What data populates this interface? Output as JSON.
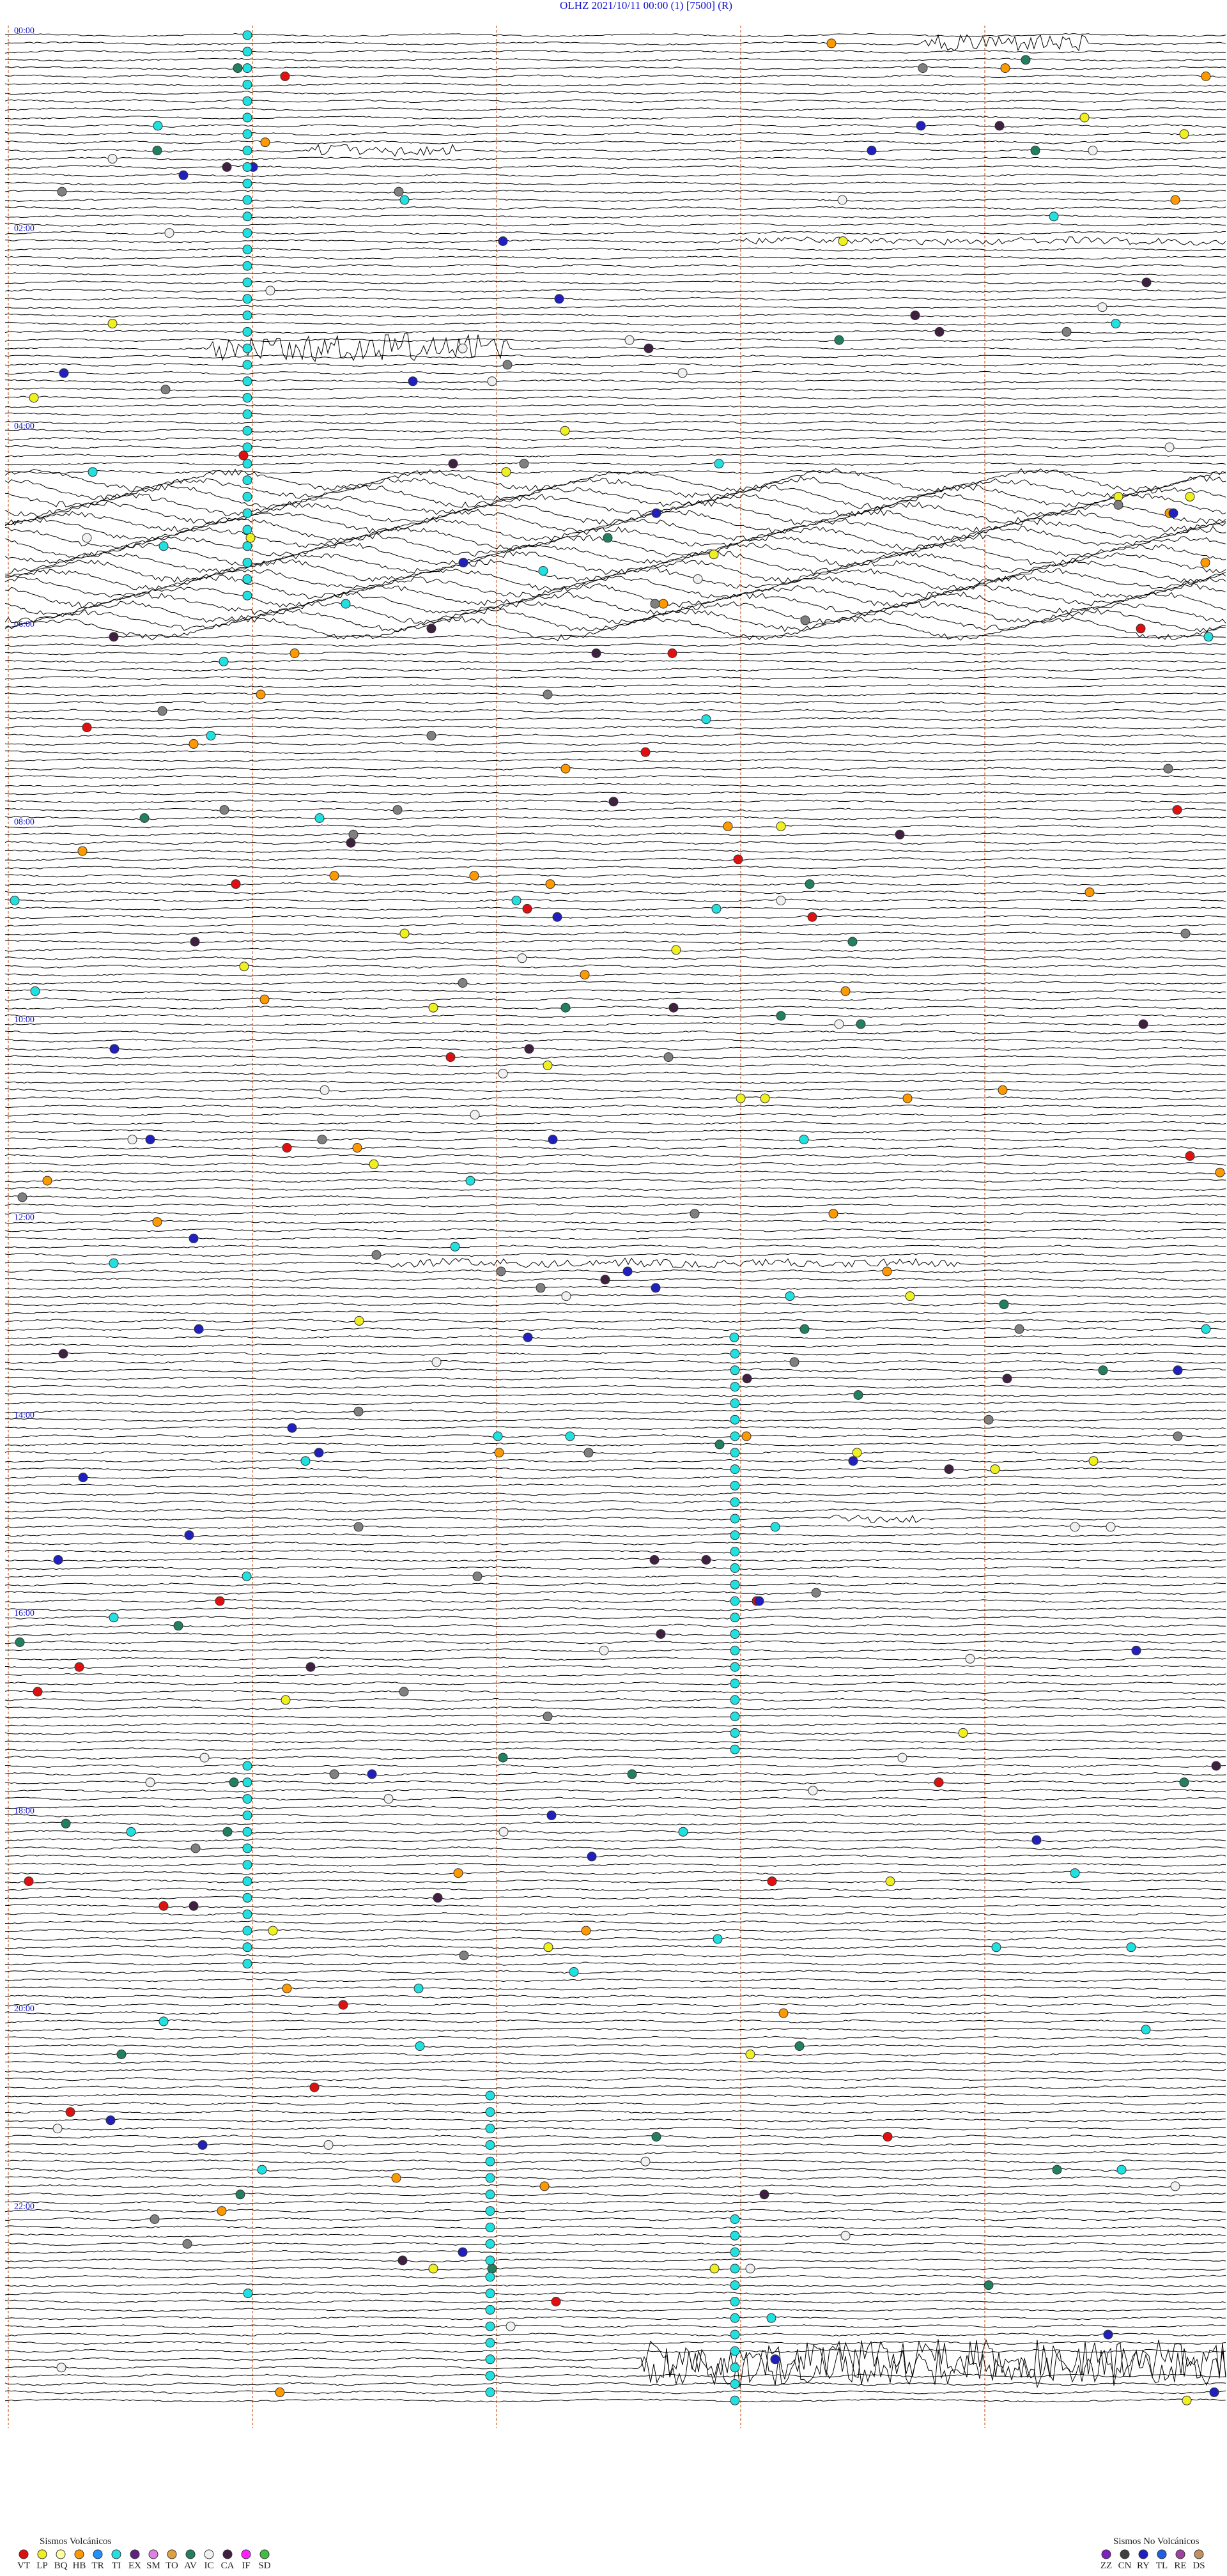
{
  "header": "OLHZ    2021/10/11 00:00    (1)    [7500]    (R)",
  "time_labels": [
    "00:00",
    "02:00",
    "04:00",
    "06:00",
    "08:00",
    "10:00",
    "12:00",
    "14:00",
    "16:00",
    "18:00",
    "20:00",
    "22:00"
  ],
  "legend_volcanic": {
    "title": "Sismos Volcánicos",
    "items": [
      {
        "code": "VT",
        "color": "#e01010"
      },
      {
        "code": "LP",
        "color": "#f0f020"
      },
      {
        "code": "BQ",
        "color": "#ffffa0"
      },
      {
        "code": "HB",
        "color": "#ff9900"
      },
      {
        "code": "TR",
        "color": "#2090ff"
      },
      {
        "code": "TI",
        "color": "#20e0e0"
      },
      {
        "code": "EX",
        "color": "#602080"
      },
      {
        "code": "SM",
        "color": "#e080e0"
      },
      {
        "code": "TO",
        "color": "#e0a040"
      },
      {
        "code": "AV",
        "color": "#208060"
      },
      {
        "code": "IC",
        "color": "#f0f0f0"
      },
      {
        "code": "CA",
        "color": "#402040"
      },
      {
        "code": "IF",
        "color": "#ff20ff"
      },
      {
        "code": "SD",
        "color": "#40c040"
      }
    ]
  },
  "legend_non_volcanic": {
    "title": "Sismos No Volcánicos",
    "items": [
      {
        "code": "ZZ",
        "color": "#8020c0"
      },
      {
        "code": "CN",
        "color": "#404040"
      },
      {
        "code": "RY",
        "color": "#2020c0"
      },
      {
        "code": "TL",
        "color": "#2060e0"
      },
      {
        "code": "RE",
        "color": "#a040a0"
      },
      {
        "code": "DS",
        "color": "#c09060"
      }
    ]
  }
}
